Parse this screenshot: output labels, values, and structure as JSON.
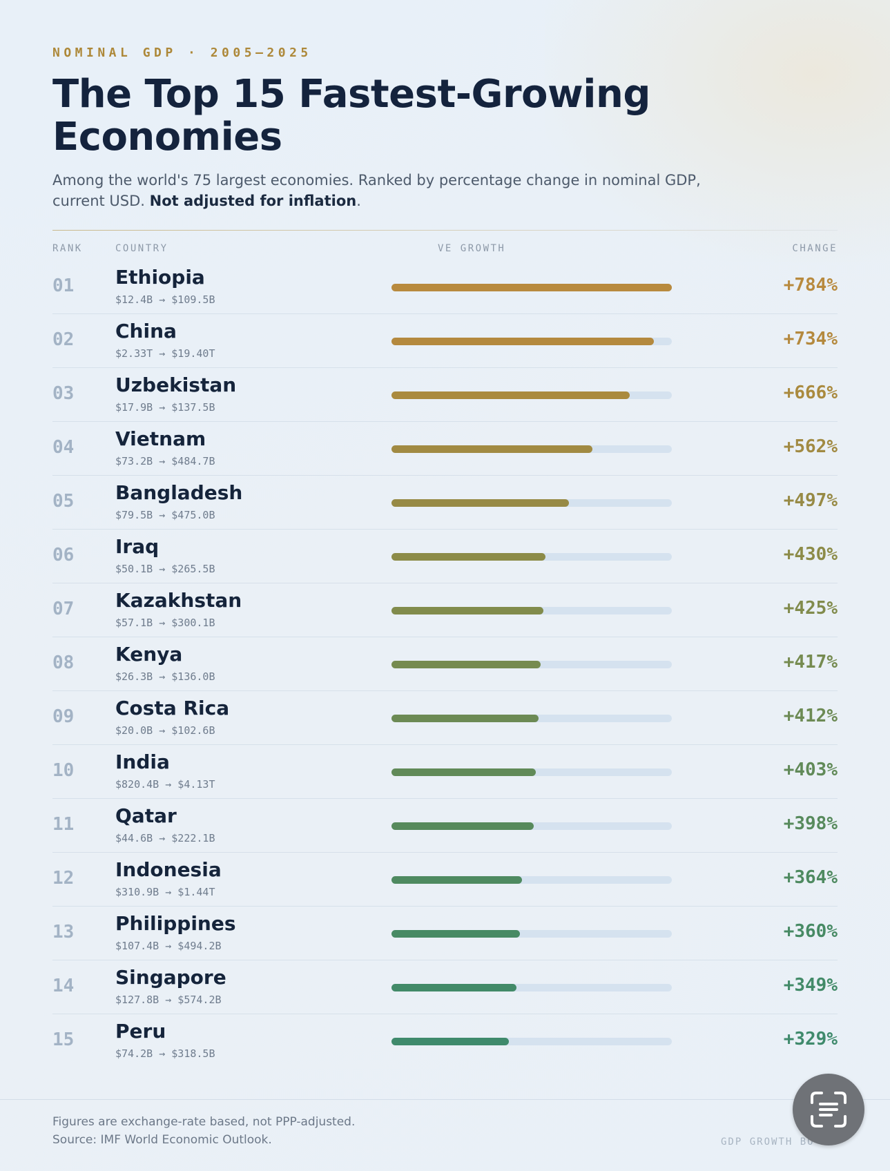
{
  "header": {
    "kicker": "NOMINAL GDP · 2005–2025",
    "title": "The Top 15 Fastest-Growing Economies",
    "subtitle_plain": "Among the world's 75 largest economies. Ranked by percentage change in nominal GDP, current USD. ",
    "subtitle_bold": "Not adjusted for inflation",
    "subtitle_end": "."
  },
  "columns": {
    "rank": "RANK",
    "country": "COUNTRY",
    "growth": "VE GROWTH",
    "change": "CHANGE"
  },
  "chart_data": {
    "type": "bar",
    "title": "The Top 15 Fastest-Growing Economies",
    "categories": [
      "Ethiopia",
      "China",
      "Uzbekistan",
      "Vietnam",
      "Bangladesh",
      "Iraq",
      "Kazakhstan",
      "Kenya",
      "Costa Rica",
      "India",
      "Qatar",
      "Indonesia",
      "Philippines",
      "Singapore",
      "Peru"
    ],
    "values": [
      784,
      734,
      666,
      562,
      497,
      430,
      425,
      417,
      412,
      403,
      398,
      364,
      360,
      349,
      329
    ],
    "xlim": [
      0,
      784
    ]
  },
  "rows": [
    {
      "rank": "01",
      "country": "Ethiopia",
      "range": "$12.4B → $109.5B",
      "change": "+784%",
      "value": 784,
      "color": "#b88a3e"
    },
    {
      "rank": "02",
      "country": "China",
      "range": "$2.33T → $19.40T",
      "change": "+734%",
      "value": 734,
      "color": "#b4893e"
    },
    {
      "rank": "03",
      "country": "Uzbekistan",
      "range": "$17.9B → $137.5B",
      "change": "+666%",
      "value": 666,
      "color": "#aa8a3e"
    },
    {
      "rank": "04",
      "country": "Vietnam",
      "range": "$73.2B → $484.7B",
      "change": "+562%",
      "value": 562,
      "color": "#a18a42"
    },
    {
      "rank": "05",
      "country": "Bangladesh",
      "range": "$79.5B → $475.0B",
      "change": "+497%",
      "value": 497,
      "color": "#978a45"
    },
    {
      "rank": "06",
      "country": "Iraq",
      "range": "$50.1B → $265.5B",
      "change": "+430%",
      "value": 430,
      "color": "#8c8b48"
    },
    {
      "rank": "07",
      "country": "Kazakhstan",
      "range": "$57.1B → $300.1B",
      "change": "+425%",
      "value": 425,
      "color": "#818b4c"
    },
    {
      "rank": "08",
      "country": "Kenya",
      "range": "$26.3B → $136.0B",
      "change": "+417%",
      "value": 417,
      "color": "#768b50"
    },
    {
      "rank": "09",
      "country": "Costa Rica",
      "range": "$20.0B → $102.6B",
      "change": "+412%",
      "value": 412,
      "color": "#6c8a54"
    },
    {
      "rank": "10",
      "country": "India",
      "range": "$820.4B → $4.13T",
      "change": "+403%",
      "value": 403,
      "color": "#618a58"
    },
    {
      "rank": "11",
      "country": "Qatar",
      "range": "$44.6B → $222.1B",
      "change": "+398%",
      "value": 398,
      "color": "#578a5c"
    },
    {
      "rank": "12",
      "country": "Indonesia",
      "range": "$310.9B → $1.44T",
      "change": "+364%",
      "value": 364,
      "color": "#4e8a60"
    },
    {
      "rank": "13",
      "country": "Philippines",
      "range": "$107.4B → $494.2B",
      "change": "+360%",
      "value": 360,
      "color": "#478a64"
    },
    {
      "rank": "14",
      "country": "Singapore",
      "range": "$127.8B → $574.2B",
      "change": "+349%",
      "value": 349,
      "color": "#428a68"
    },
    {
      "rank": "15",
      "country": "Peru",
      "range": "$74.2B → $318.5B",
      "change": "+329%",
      "value": 329,
      "color": "#3f8a6c"
    }
  ],
  "footer": {
    "note_line1": "Figures are exchange-rate based, not PPP-adjusted.",
    "note_line2": "Source: IMF World Economic Outlook.",
    "brand": "GDP GROWTH BO"
  },
  "overlay": {
    "icon": "lens-scan-icon"
  }
}
